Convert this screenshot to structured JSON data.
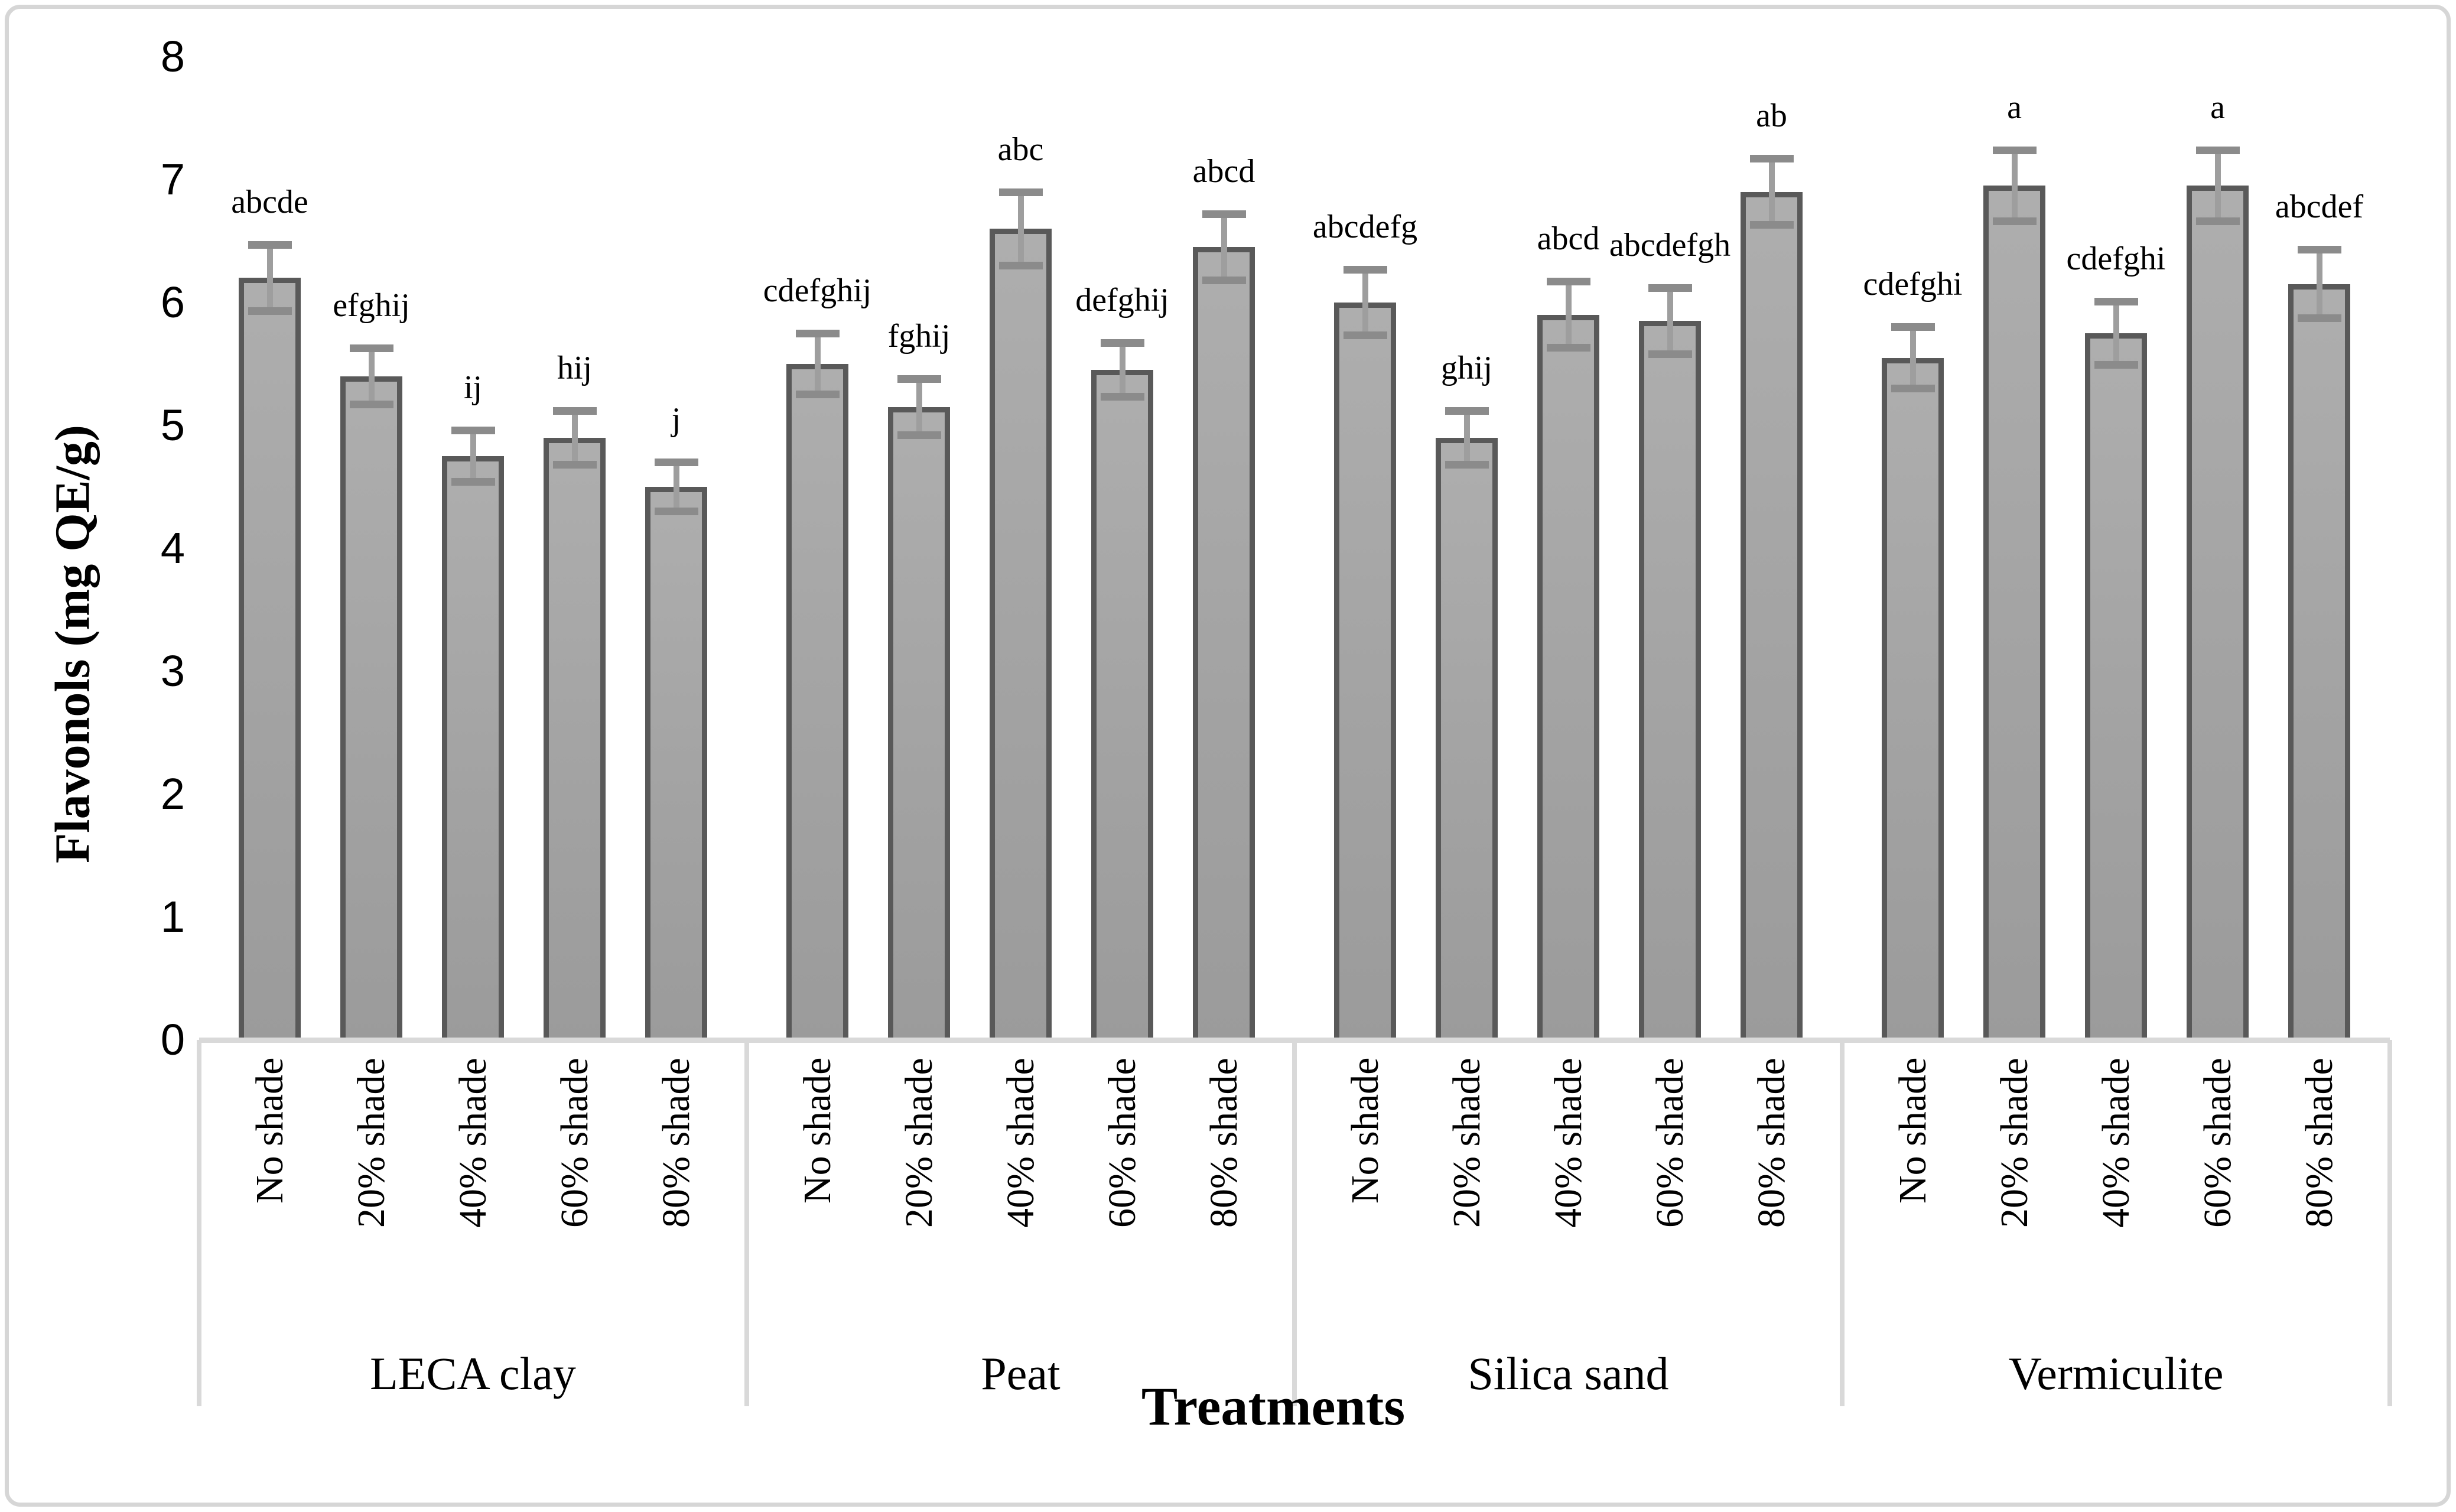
{
  "figure": {
    "background": "#ffffff",
    "border_color": "#d6d6d6"
  },
  "chart_data": {
    "type": "bar",
    "title": "",
    "ylabel": "Flavonols (mg QE/g)",
    "xlabel": "Treatments",
    "ylim": [
      0,
      8
    ],
    "yticks": [
      0,
      1,
      2,
      3,
      4,
      5,
      6,
      7,
      8
    ],
    "grid": false,
    "legend": false,
    "bar_fill": "#a6a6a6",
    "bar_border": "#595959",
    "error_color": "#8b8b8b",
    "axis_color": "#d9d9d9",
    "shade_levels": [
      "No shade",
      "20% shade",
      "40% shade",
      "60% shade",
      "80% shade"
    ],
    "groups": [
      {
        "name": "LECA clay",
        "bars": [
          {
            "category": "No shade",
            "value": 6.2,
            "error": 0.3,
            "letter": "abcde"
          },
          {
            "category": "20% shade",
            "value": 5.4,
            "error": 0.26,
            "letter": "efghij"
          },
          {
            "category": "40% shade",
            "value": 4.75,
            "error": 0.24,
            "letter": "ij"
          },
          {
            "category": "60% shade",
            "value": 4.9,
            "error": 0.25,
            "letter": "hij"
          },
          {
            "category": "80% shade",
            "value": 4.5,
            "error": 0.23,
            "letter": "j"
          }
        ]
      },
      {
        "name": "Peat",
        "bars": [
          {
            "category": "No shade",
            "value": 5.5,
            "error": 0.28,
            "letter": "cdefghij"
          },
          {
            "category": "20% shade",
            "value": 5.15,
            "error": 0.26,
            "letter": "fghij"
          },
          {
            "category": "40% shade",
            "value": 6.6,
            "error": 0.33,
            "letter": "abc"
          },
          {
            "category": "60% shade",
            "value": 5.45,
            "error": 0.25,
            "letter": "defghij"
          },
          {
            "category": "80% shade",
            "value": 6.45,
            "error": 0.3,
            "letter": "abcd"
          }
        ]
      },
      {
        "name": "Silica sand",
        "bars": [
          {
            "category": "No shade",
            "value": 6.0,
            "error": 0.3,
            "letter": "abcdefg"
          },
          {
            "category": "20% shade",
            "value": 4.9,
            "error": 0.25,
            "letter": "ghij"
          },
          {
            "category": "40% shade",
            "value": 5.9,
            "error": 0.3,
            "letter": "abcd"
          },
          {
            "category": "60% shade",
            "value": 5.85,
            "error": 0.3,
            "letter": "abcdefgh"
          },
          {
            "category": "80% shade",
            "value": 6.9,
            "error": 0.3,
            "letter": "ab"
          }
        ]
      },
      {
        "name": "Vermiculite",
        "bars": [
          {
            "category": "No shade",
            "value": 5.55,
            "error": 0.28,
            "letter": "cdefghi"
          },
          {
            "category": "20% shade",
            "value": 6.95,
            "error": 0.32,
            "letter": "a"
          },
          {
            "category": "40% shade",
            "value": 5.75,
            "error": 0.29,
            "letter": "cdefghi"
          },
          {
            "category": "60% shade",
            "value": 6.95,
            "error": 0.32,
            "letter": "a"
          },
          {
            "category": "80% shade",
            "value": 6.15,
            "error": 0.31,
            "letter": "abcdef"
          }
        ]
      }
    ]
  }
}
